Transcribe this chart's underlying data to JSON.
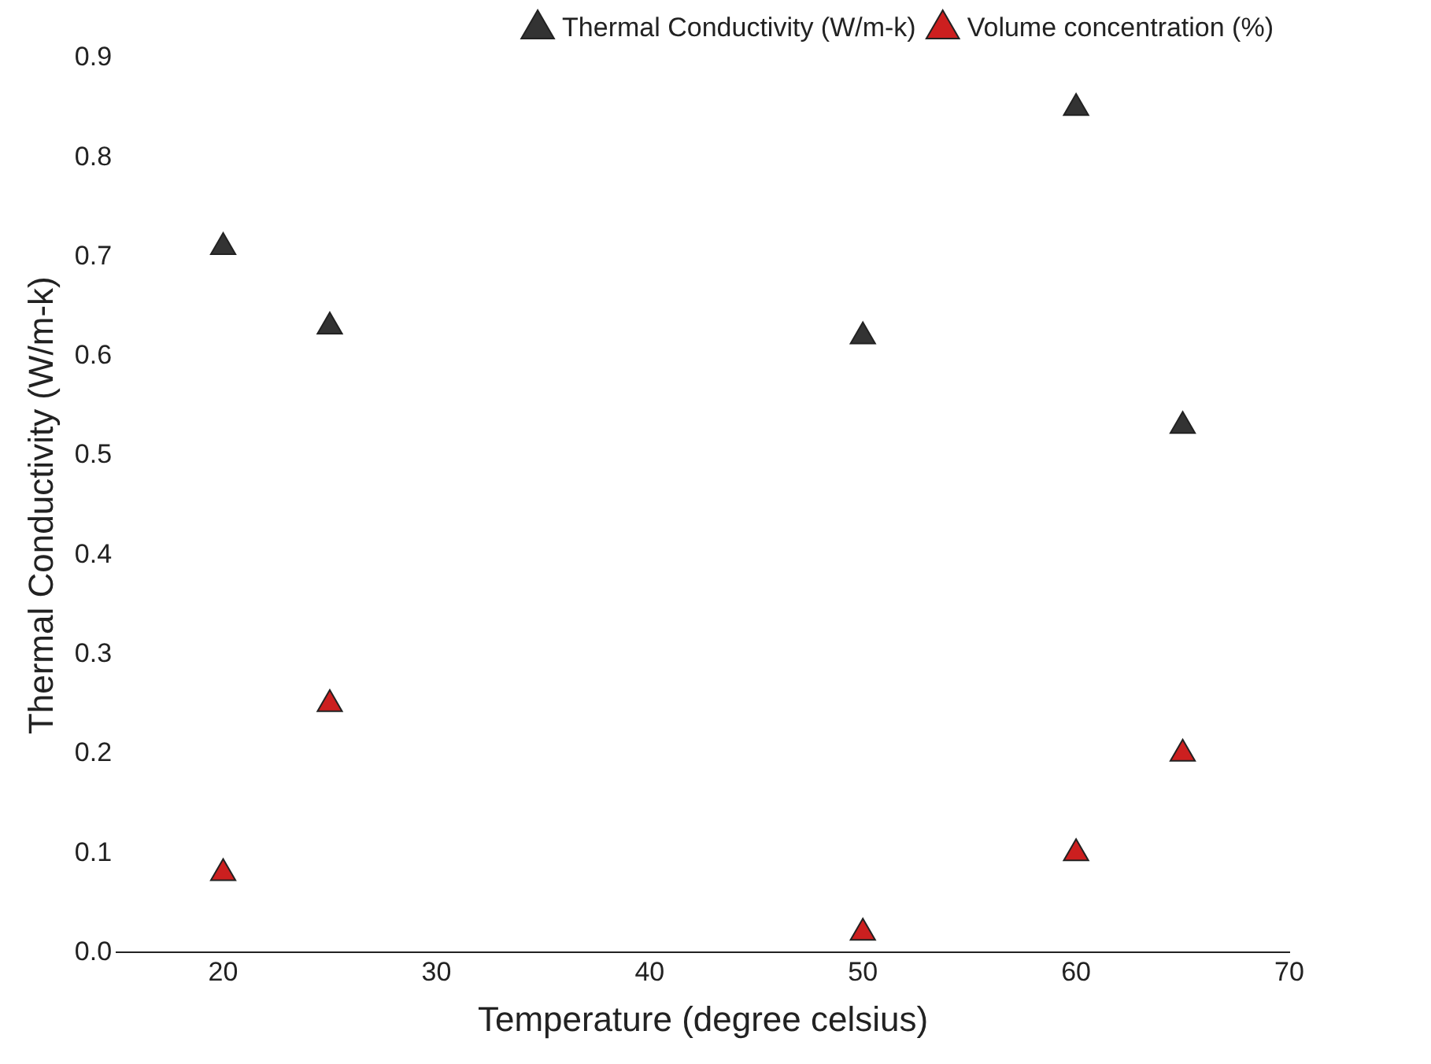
{
  "chart_data": {
    "type": "scatter",
    "xlabel": "Temperature (degree celsius)",
    "ylabel": "Thermal Conductivity (W/m-k)",
    "series": [
      {
        "name": "Thermal Conductivity (W/m-k)",
        "color": "#333333",
        "x": [
          20,
          25,
          50,
          60,
          65
        ],
        "values": [
          0.71,
          0.63,
          0.62,
          0.85,
          0.53
        ]
      },
      {
        "name": "Volume concentration (%)",
        "color": "#cc1f1f",
        "x": [
          20,
          25,
          50,
          60,
          65
        ],
        "values": [
          0.08,
          0.25,
          0.02,
          0.1,
          0.2
        ]
      }
    ],
    "xlim": [
      15,
      70
    ],
    "xticks": [
      20,
      30,
      40,
      50,
      60,
      70
    ],
    "ylim": [
      0,
      0.9
    ],
    "yticks": [
      {
        "value": 0,
        "label": "0.0"
      },
      0.1,
      0.2,
      0.3,
      0.4,
      0.5,
      0.6,
      0.7,
      0.8,
      0.9
    ],
    "grid": false,
    "legend": "top right",
    "marker": "triangle"
  }
}
